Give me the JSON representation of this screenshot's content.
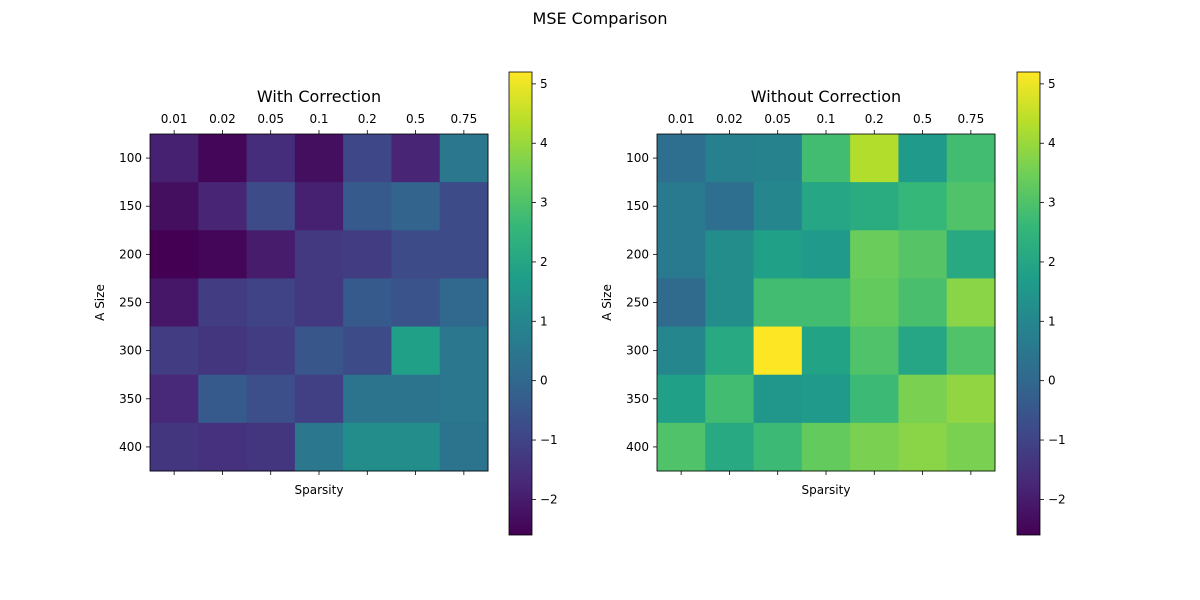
{
  "figure": {
    "suptitle": "MSE Comparison"
  },
  "chart_data": [
    {
      "type": "heatmap",
      "title": "With Correction",
      "xlabel": "Sparsity",
      "ylabel": "A Size",
      "x_categories": [
        "0.01",
        "0.02",
        "0.05",
        "0.1",
        "0.2",
        "0.5",
        "0.75"
      ],
      "y_categories": [
        "100",
        "150",
        "200",
        "250",
        "300",
        "350",
        "400"
      ],
      "values": [
        [
          -1.9,
          -2.5,
          -1.6,
          -2.3,
          -0.9,
          -1.8,
          0.5
        ],
        [
          -2.3,
          -1.8,
          -0.8,
          -1.9,
          -0.4,
          -0.1,
          -0.8
        ],
        [
          -2.6,
          -2.5,
          -2.0,
          -1.3,
          -1.2,
          -0.8,
          -0.8
        ],
        [
          -2.1,
          -1.2,
          -1.0,
          -1.3,
          -0.4,
          -0.6,
          0.0
        ],
        [
          -1.2,
          -1.4,
          -1.2,
          -0.5,
          -0.8,
          1.8,
          0.5
        ],
        [
          -1.7,
          -0.4,
          -0.7,
          -1.1,
          0.4,
          0.4,
          0.5
        ],
        [
          -1.4,
          -1.5,
          -1.4,
          0.5,
          1.2,
          1.2,
          0.4
        ]
      ],
      "colorbar": {
        "min": -2.6,
        "max": 5.2,
        "ticks": [
          -2,
          -1,
          0,
          1,
          2,
          3,
          4,
          5
        ],
        "colormap": "viridis"
      }
    },
    {
      "type": "heatmap",
      "title": "Without Correction",
      "xlabel": "Sparsity",
      "ylabel": "A Size",
      "x_categories": [
        "0.01",
        "0.02",
        "0.05",
        "0.1",
        "0.2",
        "0.5",
        "0.75"
      ],
      "y_categories": [
        "100",
        "150",
        "200",
        "250",
        "300",
        "350",
        "400"
      ],
      "values": [
        [
          0.2,
          0.8,
          0.9,
          2.8,
          4.3,
          1.6,
          2.8
        ],
        [
          0.6,
          0.2,
          1.0,
          2.0,
          2.2,
          2.6,
          3.0
        ],
        [
          0.6,
          1.2,
          1.8,
          1.6,
          3.4,
          3.1,
          2.1
        ],
        [
          0.1,
          1.2,
          2.8,
          2.8,
          3.3,
          2.9,
          3.8
        ],
        [
          1.0,
          2.1,
          5.2,
          1.9,
          3.0,
          2.0,
          3.0
        ],
        [
          1.8,
          2.8,
          1.5,
          1.6,
          2.7,
          3.6,
          3.9
        ],
        [
          3.0,
          2.1,
          2.7,
          3.3,
          3.6,
          3.8,
          3.6
        ]
      ],
      "colorbar": {
        "min": -2.6,
        "max": 5.2,
        "ticks": [
          -2,
          -1,
          0,
          1,
          2,
          3,
          4,
          5
        ],
        "colormap": "viridis"
      }
    }
  ]
}
